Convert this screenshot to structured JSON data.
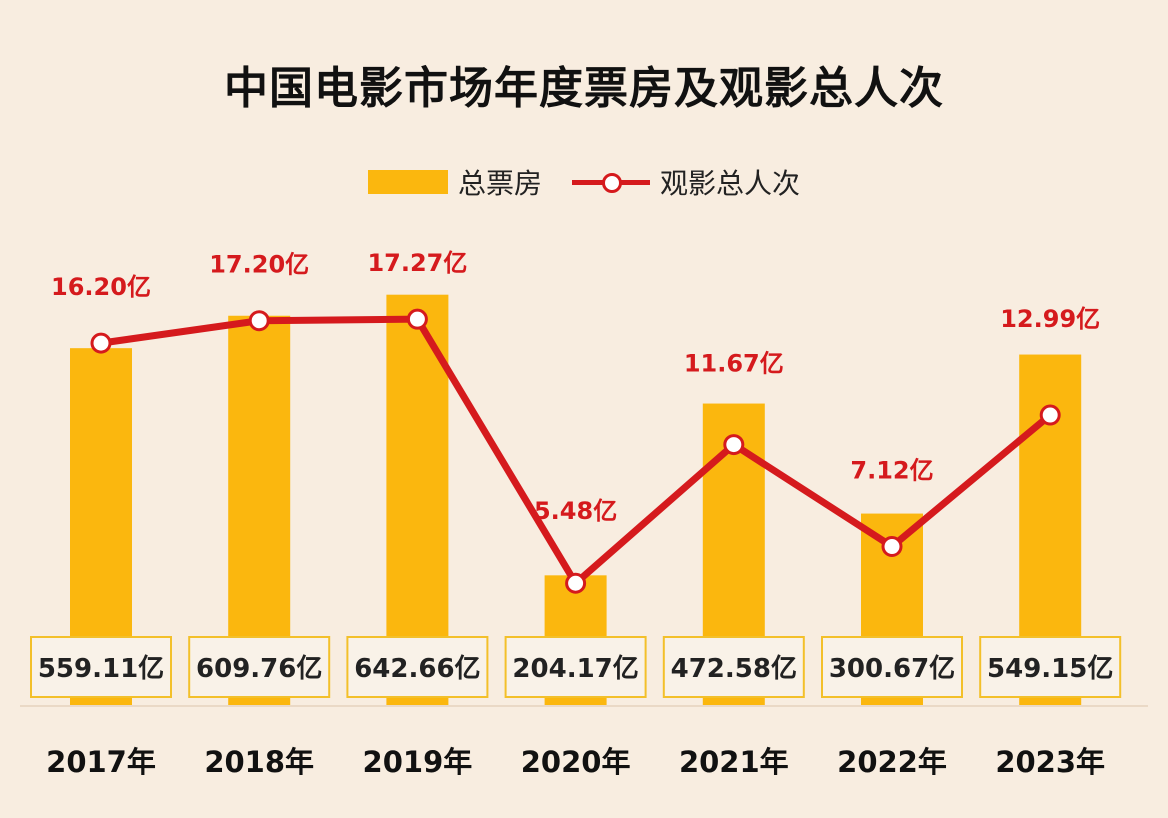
{
  "chart_data": {
    "type": "bar+line",
    "title": "中国电影市场年度票房及观影总人次",
    "categories": [
      "2017年",
      "2018年",
      "2019年",
      "2020年",
      "2021年",
      "2022年",
      "2023年"
    ],
    "series": [
      {
        "name": "总票房",
        "type": "bar",
        "values": [
          559.11,
          609.76,
          642.66,
          204.17,
          472.58,
          300.67,
          549.15
        ],
        "labels": [
          "559.11亿",
          "609.76亿",
          "642.66亿",
          "204.17亿",
          "472.58亿",
          "300.67亿",
          "549.15亿"
        ],
        "color": "#fbb70e"
      },
      {
        "name": "观影总人次",
        "type": "line",
        "values": [
          16.2,
          17.2,
          17.27,
          5.48,
          11.67,
          7.12,
          12.99
        ],
        "labels": [
          "16.20亿",
          "17.20亿",
          "17.27亿",
          "5.48亿",
          "11.67亿",
          "7.12亿",
          "12.99亿"
        ],
        "color": "#d51a1d"
      }
    ],
    "legend_position": "top-center",
    "grid": false
  }
}
